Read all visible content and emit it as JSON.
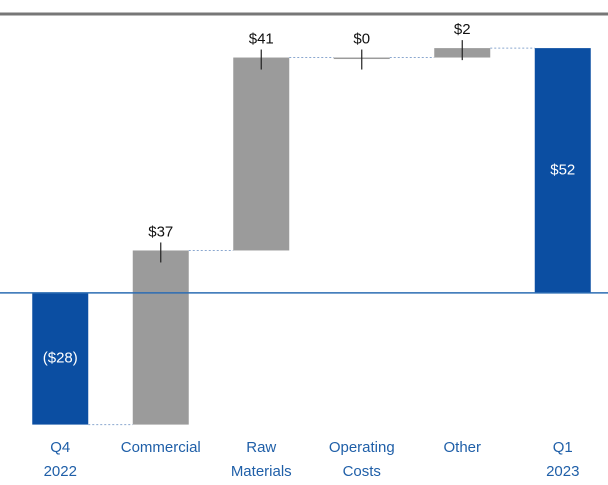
{
  "chart_data": {
    "type": "waterfall",
    "categories": [
      [
        "Q4",
        "2022"
      ],
      [
        "Commercial"
      ],
      [
        "Raw",
        "Materials"
      ],
      [
        "Operating",
        "Costs"
      ],
      [
        "Other"
      ],
      [
        "Q1",
        "2023"
      ]
    ],
    "values": [
      -28,
      37,
      41,
      0,
      2,
      52
    ],
    "value_labels": [
      "($28)",
      "$37",
      "$41",
      "$0",
      "$2",
      "$52"
    ],
    "measure": [
      "absolute",
      "relative",
      "relative",
      "relative",
      "relative",
      "total"
    ],
    "total_color": "#0b4ea2",
    "delta_color": "#9b9b9b",
    "ylim": [
      -30,
      55
    ]
  }
}
